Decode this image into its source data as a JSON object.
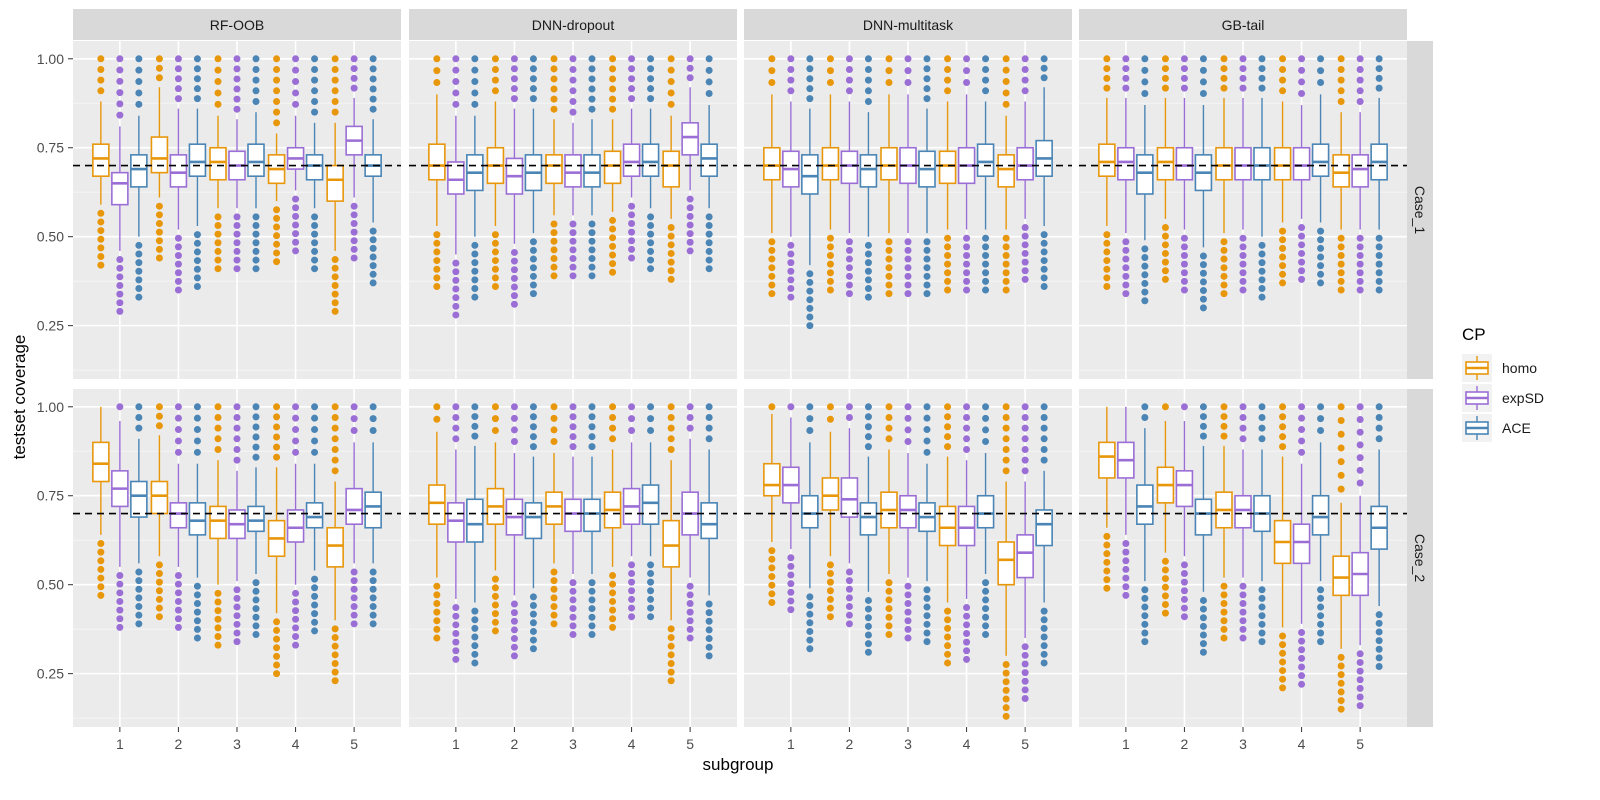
{
  "chart_data": {
    "type": "boxplot",
    "panels": [
      "RF-OOB",
      "DNN-dropout",
      "DNN-multitask",
      "GB-tail"
    ],
    "rows": [
      "Case_1",
      "Case_2"
    ],
    "categories": [
      "1",
      "2",
      "3",
      "4",
      "5"
    ],
    "xlabel": "subgroup",
    "ylabel": "testset coverage",
    "ylim": [
      0.1,
      1.05
    ],
    "yticks": [
      0.25,
      0.5,
      0.75,
      1.0
    ],
    "ytick_labels": [
      "0.25",
      "0.50",
      "0.75",
      "1.00"
    ],
    "reference_line": 0.7,
    "legend": {
      "title": "CP",
      "entries": [
        {
          "label": "homo",
          "color": "#E8970B"
        },
        {
          "label": "expSD",
          "color": "#9B6ED6"
        },
        {
          "label": "ACE",
          "color": "#4A85B5"
        }
      ]
    },
    "series": [
      {
        "panel": "RF-OOB",
        "row": "Case_1",
        "boxes": {
          "homo": [
            [
              0.59,
              0.67,
              0.72,
              0.76,
              0.88
            ],
            [
              0.61,
              0.68,
              0.72,
              0.78,
              0.92
            ],
            [
              0.58,
              0.66,
              0.71,
              0.75,
              0.84
            ],
            [
              0.6,
              0.65,
              0.69,
              0.73,
              0.79
            ],
            [
              0.46,
              0.6,
              0.66,
              0.7,
              0.82
            ]
          ],
          "expSD": [
            [
              0.46,
              0.59,
              0.65,
              0.68,
              0.81
            ],
            [
              0.52,
              0.64,
              0.68,
              0.73,
              0.86
            ],
            [
              0.58,
              0.66,
              0.7,
              0.74,
              0.83
            ],
            [
              0.63,
              0.69,
              0.72,
              0.75,
              0.84
            ],
            [
              0.61,
              0.73,
              0.77,
              0.81,
              0.89
            ]
          ],
          "ACE": [
            [
              0.5,
              0.64,
              0.69,
              0.73,
              0.84
            ],
            [
              0.53,
              0.67,
              0.71,
              0.76,
              0.86
            ],
            [
              0.58,
              0.67,
              0.71,
              0.76,
              0.85
            ],
            [
              0.58,
              0.66,
              0.7,
              0.73,
              0.82
            ],
            [
              0.54,
              0.67,
              0.7,
              0.73,
              0.83
            ]
          ]
        }
      },
      {
        "panel": "DNN-dropout",
        "row": "Case_1",
        "boxes": {
          "homo": [
            [
              0.53,
              0.66,
              0.7,
              0.76,
              0.9
            ],
            [
              0.53,
              0.65,
              0.7,
              0.75,
              0.88
            ],
            [
              0.56,
              0.65,
              0.7,
              0.73,
              0.83
            ],
            [
              0.57,
              0.65,
              0.7,
              0.74,
              0.83
            ],
            [
              0.55,
              0.64,
              0.7,
              0.74,
              0.84
            ]
          ],
          "expSD": [
            [
              0.45,
              0.62,
              0.66,
              0.71,
              0.84
            ],
            [
              0.48,
              0.62,
              0.67,
              0.72,
              0.86
            ],
            [
              0.56,
              0.64,
              0.68,
              0.73,
              0.82
            ],
            [
              0.61,
              0.67,
              0.71,
              0.76,
              0.86
            ],
            [
              0.63,
              0.73,
              0.78,
              0.82,
              0.92
            ]
          ],
          "ACE": [
            [
              0.5,
              0.63,
              0.68,
              0.73,
              0.84
            ],
            [
              0.51,
              0.63,
              0.68,
              0.73,
              0.86
            ],
            [
              0.56,
              0.64,
              0.68,
              0.73,
              0.83
            ],
            [
              0.58,
              0.67,
              0.71,
              0.76,
              0.86
            ],
            [
              0.58,
              0.67,
              0.72,
              0.76,
              0.87
            ]
          ]
        }
      },
      {
        "panel": "DNN-multitask",
        "row": "Case_1",
        "boxes": {
          "homo": [
            [
              0.51,
              0.66,
              0.7,
              0.75,
              0.9
            ],
            [
              0.52,
              0.66,
              0.7,
              0.75,
              0.9
            ],
            [
              0.51,
              0.66,
              0.7,
              0.75,
              0.9
            ],
            [
              0.52,
              0.65,
              0.7,
              0.74,
              0.88
            ],
            [
              0.52,
              0.64,
              0.69,
              0.73,
              0.84
            ]
          ],
          "expSD": [
            [
              0.5,
              0.64,
              0.69,
              0.74,
              0.88
            ],
            [
              0.51,
              0.65,
              0.7,
              0.74,
              0.88
            ],
            [
              0.51,
              0.65,
              0.7,
              0.75,
              0.9
            ],
            [
              0.52,
              0.65,
              0.7,
              0.75,
              0.9
            ],
            [
              0.55,
              0.66,
              0.7,
              0.75,
              0.88
            ]
          ],
          "ACE": [
            [
              0.42,
              0.62,
              0.67,
              0.73,
              0.86
            ],
            [
              0.5,
              0.64,
              0.69,
              0.73,
              0.85
            ],
            [
              0.51,
              0.64,
              0.69,
              0.74,
              0.86
            ],
            [
              0.52,
              0.67,
              0.71,
              0.76,
              0.88
            ],
            [
              0.53,
              0.67,
              0.72,
              0.77,
              0.92
            ]
          ]
        }
      },
      {
        "panel": "GB-tail",
        "row": "Case_1",
        "boxes": {
          "homo": [
            [
              0.53,
              0.67,
              0.71,
              0.76,
              0.89
            ],
            [
              0.55,
              0.66,
              0.71,
              0.75,
              0.89
            ],
            [
              0.51,
              0.66,
              0.7,
              0.75,
              0.89
            ],
            [
              0.54,
              0.66,
              0.7,
              0.75,
              0.88
            ],
            [
              0.52,
              0.64,
              0.68,
              0.73,
              0.85
            ]
          ],
          "expSD": [
            [
              0.51,
              0.66,
              0.71,
              0.75,
              0.89
            ],
            [
              0.52,
              0.66,
              0.7,
              0.75,
              0.89
            ],
            [
              0.52,
              0.66,
              0.7,
              0.75,
              0.89
            ],
            [
              0.55,
              0.66,
              0.7,
              0.75,
              0.87
            ],
            [
              0.52,
              0.64,
              0.69,
              0.73,
              0.85
            ]
          ],
          "ACE": [
            [
              0.49,
              0.62,
              0.68,
              0.73,
              0.87
            ],
            [
              0.47,
              0.63,
              0.68,
              0.73,
              0.87
            ],
            [
              0.5,
              0.66,
              0.7,
              0.75,
              0.89
            ],
            [
              0.54,
              0.67,
              0.71,
              0.76,
              0.9
            ],
            [
              0.52,
              0.66,
              0.71,
              0.76,
              0.89
            ]
          ]
        }
      },
      {
        "panel": "RF-OOB",
        "row": "Case_2",
        "boxes": {
          "homo": [
            [
              0.64,
              0.79,
              0.84,
              0.9,
              1.0
            ],
            [
              0.58,
              0.7,
              0.75,
              0.79,
              0.92
            ],
            [
              0.5,
              0.63,
              0.68,
              0.72,
              0.85
            ],
            [
              0.42,
              0.58,
              0.63,
              0.68,
              0.83
            ],
            [
              0.4,
              0.55,
              0.61,
              0.66,
              0.79
            ]
          ],
          "expSD": [
            [
              0.55,
              0.72,
              0.77,
              0.82,
              0.96
            ],
            [
              0.55,
              0.66,
              0.7,
              0.73,
              0.84
            ],
            [
              0.51,
              0.63,
              0.67,
              0.71,
              0.82
            ],
            [
              0.5,
              0.62,
              0.66,
              0.71,
              0.84
            ],
            [
              0.56,
              0.67,
              0.71,
              0.77,
              0.9
            ]
          ],
          "ACE": [
            [
              0.56,
              0.69,
              0.75,
              0.79,
              0.91
            ],
            [
              0.52,
              0.64,
              0.68,
              0.73,
              0.84
            ],
            [
              0.53,
              0.65,
              0.68,
              0.72,
              0.83
            ],
            [
              0.54,
              0.66,
              0.69,
              0.73,
              0.84
            ],
            [
              0.56,
              0.66,
              0.72,
              0.76,
              0.9
            ]
          ]
        }
      },
      {
        "panel": "DNN-dropout",
        "row": "Case_2",
        "boxes": {
          "homo": [
            [
              0.52,
              0.67,
              0.73,
              0.78,
              0.93
            ],
            [
              0.54,
              0.67,
              0.72,
              0.77,
              0.9
            ],
            [
              0.56,
              0.67,
              0.72,
              0.76,
              0.87
            ],
            [
              0.55,
              0.66,
              0.71,
              0.76,
              0.88
            ],
            [
              0.4,
              0.55,
              0.61,
              0.68,
              0.85
            ]
          ],
          "expSD": [
            [
              0.46,
              0.62,
              0.68,
              0.73,
              0.88
            ],
            [
              0.47,
              0.64,
              0.69,
              0.74,
              0.87
            ],
            [
              0.53,
              0.65,
              0.7,
              0.74,
              0.86
            ],
            [
              0.58,
              0.67,
              0.72,
              0.77,
              0.9
            ],
            [
              0.52,
              0.64,
              0.7,
              0.76,
              0.91
            ]
          ],
          "ACE": [
            [
              0.45,
              0.62,
              0.67,
              0.74,
              0.89
            ],
            [
              0.49,
              0.63,
              0.69,
              0.73,
              0.86
            ],
            [
              0.53,
              0.65,
              0.7,
              0.74,
              0.86
            ],
            [
              0.58,
              0.67,
              0.73,
              0.78,
              0.9
            ],
            [
              0.47,
              0.63,
              0.67,
              0.73,
              0.88
            ]
          ]
        }
      },
      {
        "panel": "DNN-multitask",
        "row": "Case_2",
        "boxes": {
          "homo": [
            [
              0.62,
              0.75,
              0.78,
              0.84,
              0.98
            ],
            [
              0.58,
              0.71,
              0.75,
              0.8,
              0.93
            ],
            [
              0.53,
              0.66,
              0.71,
              0.76,
              0.88
            ],
            [
              0.45,
              0.61,
              0.66,
              0.72,
              0.86
            ],
            [
              0.3,
              0.5,
              0.57,
              0.62,
              0.79
            ]
          ],
          "expSD": [
            [
              0.6,
              0.73,
              0.78,
              0.83,
              0.97
            ],
            [
              0.56,
              0.69,
              0.74,
              0.8,
              0.94
            ],
            [
              0.52,
              0.66,
              0.71,
              0.75,
              0.87
            ],
            [
              0.46,
              0.61,
              0.66,
              0.72,
              0.85
            ],
            [
              0.35,
              0.52,
              0.59,
              0.64,
              0.79
            ]
          ],
          "ACE": [
            [
              0.49,
              0.66,
              0.7,
              0.75,
              0.9
            ],
            [
              0.48,
              0.64,
              0.69,
              0.73,
              0.86
            ],
            [
              0.51,
              0.65,
              0.69,
              0.73,
              0.84
            ],
            [
              0.53,
              0.66,
              0.7,
              0.75,
              0.87
            ],
            [
              0.45,
              0.61,
              0.67,
              0.71,
              0.82
            ]
          ]
        }
      },
      {
        "panel": "GB-tail",
        "row": "Case_2",
        "boxes": {
          "homo": [
            [
              0.66,
              0.8,
              0.86,
              0.9,
              1.0
            ],
            [
              0.59,
              0.73,
              0.78,
              0.83,
              0.96
            ],
            [
              0.52,
              0.66,
              0.71,
              0.76,
              0.89
            ],
            [
              0.38,
              0.56,
              0.62,
              0.68,
              0.86
            ],
            [
              0.32,
              0.47,
              0.52,
              0.58,
              0.73
            ]
          ],
          "expSD": [
            [
              0.64,
              0.8,
              0.85,
              0.9,
              1.0
            ],
            [
              0.58,
              0.72,
              0.78,
              0.82,
              0.96
            ],
            [
              0.52,
              0.66,
              0.71,
              0.75,
              0.88
            ],
            [
              0.39,
              0.56,
              0.62,
              0.67,
              0.84
            ],
            [
              0.33,
              0.47,
              0.53,
              0.59,
              0.75
            ]
          ],
          "ACE": [
            [
              0.51,
              0.67,
              0.72,
              0.78,
              0.94
            ],
            [
              0.48,
              0.64,
              0.7,
              0.74,
              0.89
            ],
            [
              0.51,
              0.65,
              0.7,
              0.75,
              0.88
            ],
            [
              0.51,
              0.64,
              0.69,
              0.75,
              0.9
            ],
            [
              0.44,
              0.6,
              0.66,
              0.72,
              0.88
            ]
          ]
        }
      }
    ]
  }
}
